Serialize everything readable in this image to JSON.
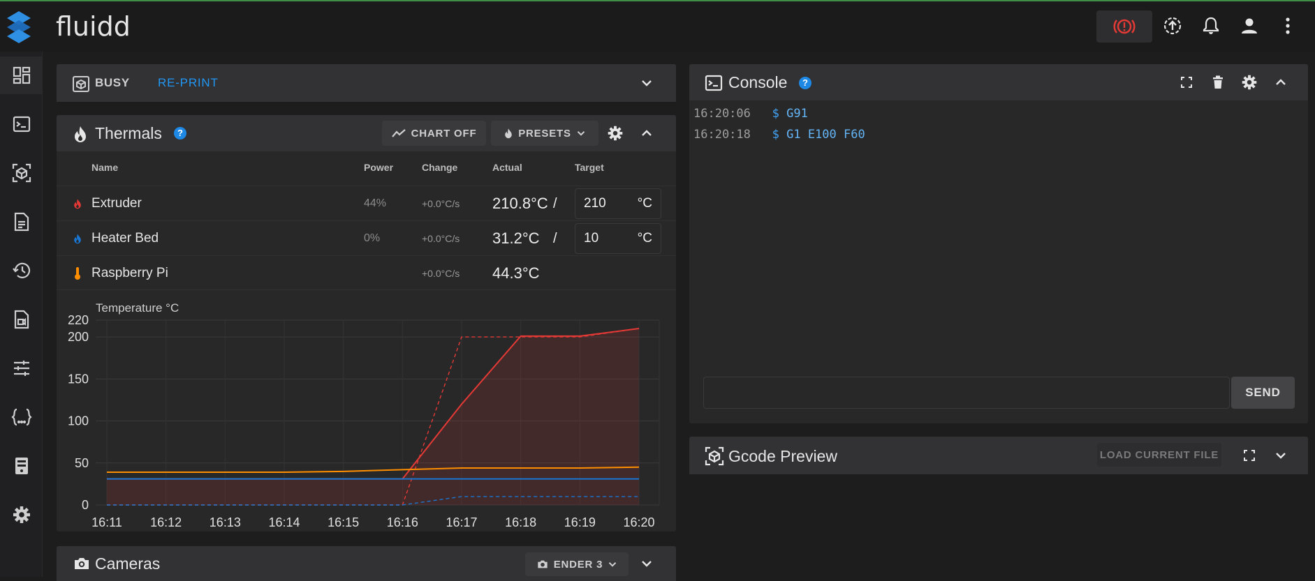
{
  "app": {
    "title": "fluidd"
  },
  "colors": {
    "accent": "#1e88e5",
    "extruder": "#e53935",
    "bed": "#1976d2",
    "pi": "#ff8f00",
    "estop": "#e53935"
  },
  "nav": [
    "dashboard-icon",
    "console-icon",
    "gcode-preview-icon",
    "jobs-icon",
    "history-icon",
    "timelapse-icon",
    "tune-icon",
    "macros-icon",
    "system-icon",
    "settings-icon"
  ],
  "status_card": {
    "status": "BUSY",
    "action": "RE-PRINT"
  },
  "thermals": {
    "title": "Thermals",
    "chart_button": "CHART OFF",
    "presets_button": "PRESETS",
    "headers": {
      "name": "Name",
      "power": "Power",
      "change": "Change",
      "actual": "Actual",
      "target": "Target"
    },
    "rows": [
      {
        "name": "Extruder",
        "power": "44%",
        "change": "+0.0°C/s",
        "actual": "210.8°C",
        "target": "210",
        "unit": "°C"
      },
      {
        "name": "Heater Bed",
        "power": "0%",
        "change": "+0.0°C/s",
        "actual": "31.2°C",
        "target": "10",
        "unit": "°C"
      },
      {
        "name": "Raspberry Pi",
        "change": "+0.0°C/s",
        "actual": "44.3°C"
      }
    ]
  },
  "chart_data": {
    "type": "line",
    "ylabel": "Temperature °C",
    "ylim": [
      0,
      220
    ],
    "yticks": [
      "220",
      "200",
      "150",
      "100",
      "50",
      "0"
    ],
    "x": [
      "16:11",
      "16:12",
      "16:13",
      "16:14",
      "16:15",
      "16:16",
      "16:17",
      "16:18",
      "16:19",
      "16:20"
    ],
    "series": [
      {
        "color": "#e53935",
        "values": [
          31,
          31,
          31,
          31,
          31,
          31,
          120,
          201,
          201,
          210
        ]
      },
      {
        "color": "#e53935",
        "dashed": true,
        "values": [
          0,
          0,
          0,
          0,
          0,
          0,
          200,
          200,
          200,
          210
        ]
      },
      {
        "color": "#1976d2",
        "values": [
          31,
          31,
          31,
          31,
          31,
          31,
          31,
          31,
          31,
          31
        ]
      },
      {
        "color": "#1976d2",
        "dashed": true,
        "values": [
          0,
          0,
          0,
          0,
          0,
          0,
          10,
          10,
          10,
          10
        ]
      },
      {
        "color": "#ff8f00",
        "values": [
          39,
          39,
          39,
          39,
          40,
          42,
          44,
          44,
          44,
          45
        ]
      }
    ],
    "grid": true
  },
  "cameras": {
    "title": "Cameras",
    "selected": "ENDER 3"
  },
  "console": {
    "title": "Console",
    "entries": [
      {
        "time": "16:20:06",
        "prompt": "$",
        "cmd": "G91"
      },
      {
        "time": "16:20:18",
        "prompt": "$",
        "cmd": "G1 E100 F60"
      }
    ],
    "send_button": "SEND",
    "input_value": ""
  },
  "gcode_preview": {
    "title": "Gcode Preview",
    "load_button": "LOAD CURRENT FILE"
  }
}
